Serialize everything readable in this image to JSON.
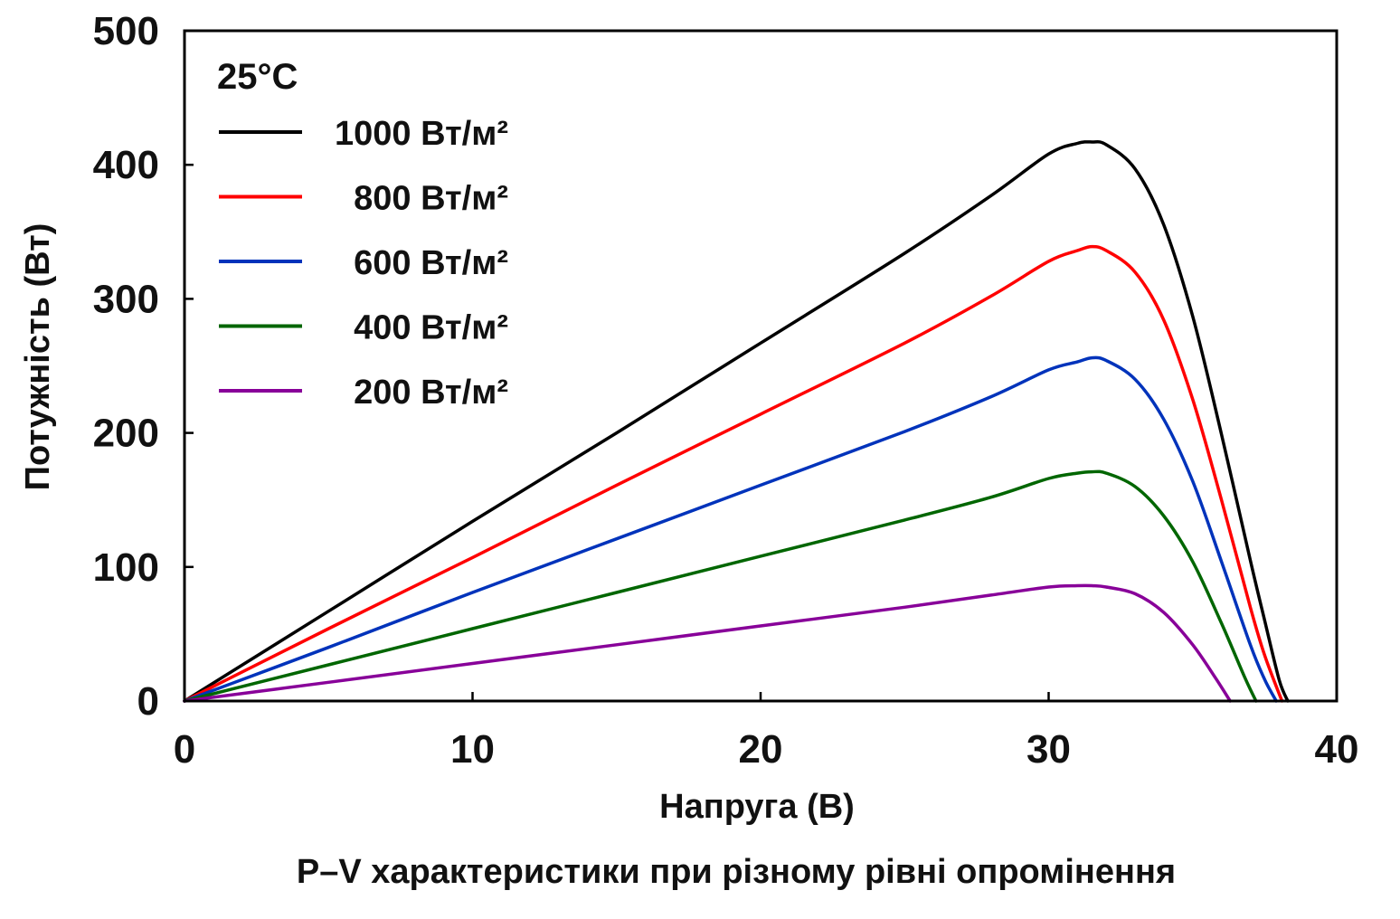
{
  "chart_data": {
    "type": "line",
    "caption": "P–V характеристики при різному рівні опромінення",
    "xlabel": "Напруга (В)",
    "ylabel": "Потужність (Вт)",
    "xlim": [
      0,
      40
    ],
    "ylim": [
      0,
      500
    ],
    "xticks": [
      "0",
      "10",
      "20",
      "30",
      "40"
    ],
    "yticks": [
      "0",
      "100",
      "200",
      "300",
      "400",
      "500"
    ],
    "grid": false,
    "legend_position": "top-left",
    "legend_title": "25°C",
    "series": [
      {
        "name": "1000 Вт/м²",
        "color": "#000000",
        "x": [
          0,
          5,
          10,
          15,
          20,
          25,
          28,
          30,
          31,
          31.5,
          32,
          33,
          34,
          35,
          36,
          37,
          37.5,
          38,
          38.3
        ],
        "y": [
          0,
          67,
          134,
          200,
          267,
          334,
          377,
          408,
          416,
          417,
          415,
          397,
          355,
          287,
          199,
          105,
          60,
          16,
          0
        ]
      },
      {
        "name": "800 Вт/м²",
        "color": "#ff0000",
        "x": [
          0,
          5,
          10,
          15,
          20,
          25,
          28,
          30,
          31,
          31.5,
          32,
          33,
          34,
          35,
          36,
          37,
          37.5,
          38.1
        ],
        "y": [
          0,
          54,
          107,
          161,
          214,
          267,
          302,
          328,
          336,
          339,
          336,
          320,
          284,
          225,
          150,
          70,
          34,
          0
        ]
      },
      {
        "name": "600 Вт/м²",
        "color": "#0033bb",
        "x": [
          0,
          5,
          10,
          15,
          20,
          25,
          28,
          30,
          31,
          31.5,
          32,
          33,
          34,
          35,
          36,
          37,
          37.5,
          37.9
        ],
        "y": [
          0,
          40,
          81,
          121,
          161,
          201,
          227,
          247,
          253,
          256,
          254,
          240,
          210,
          164,
          104,
          42,
          16,
          0
        ]
      },
      {
        "name": "400 Вт/м²",
        "color": "#006600",
        "x": [
          0,
          5,
          10,
          15,
          20,
          25,
          28,
          30,
          31,
          31.5,
          32,
          33,
          34,
          35,
          36,
          36.8,
          37.2
        ],
        "y": [
          0,
          27,
          54,
          81,
          108,
          135,
          152,
          166,
          170,
          171,
          170,
          160,
          138,
          104,
          58,
          18,
          0
        ]
      },
      {
        "name": "200 Вт/м²",
        "color": "#880099",
        "x": [
          0,
          5,
          10,
          15,
          20,
          25,
          28,
          30,
          31,
          31.5,
          32,
          33,
          34,
          35,
          35.8,
          36.3
        ],
        "y": [
          0,
          14,
          28,
          42,
          56,
          70,
          79,
          85,
          86,
          86,
          85,
          80,
          66,
          42,
          17,
          0
        ]
      }
    ]
  }
}
